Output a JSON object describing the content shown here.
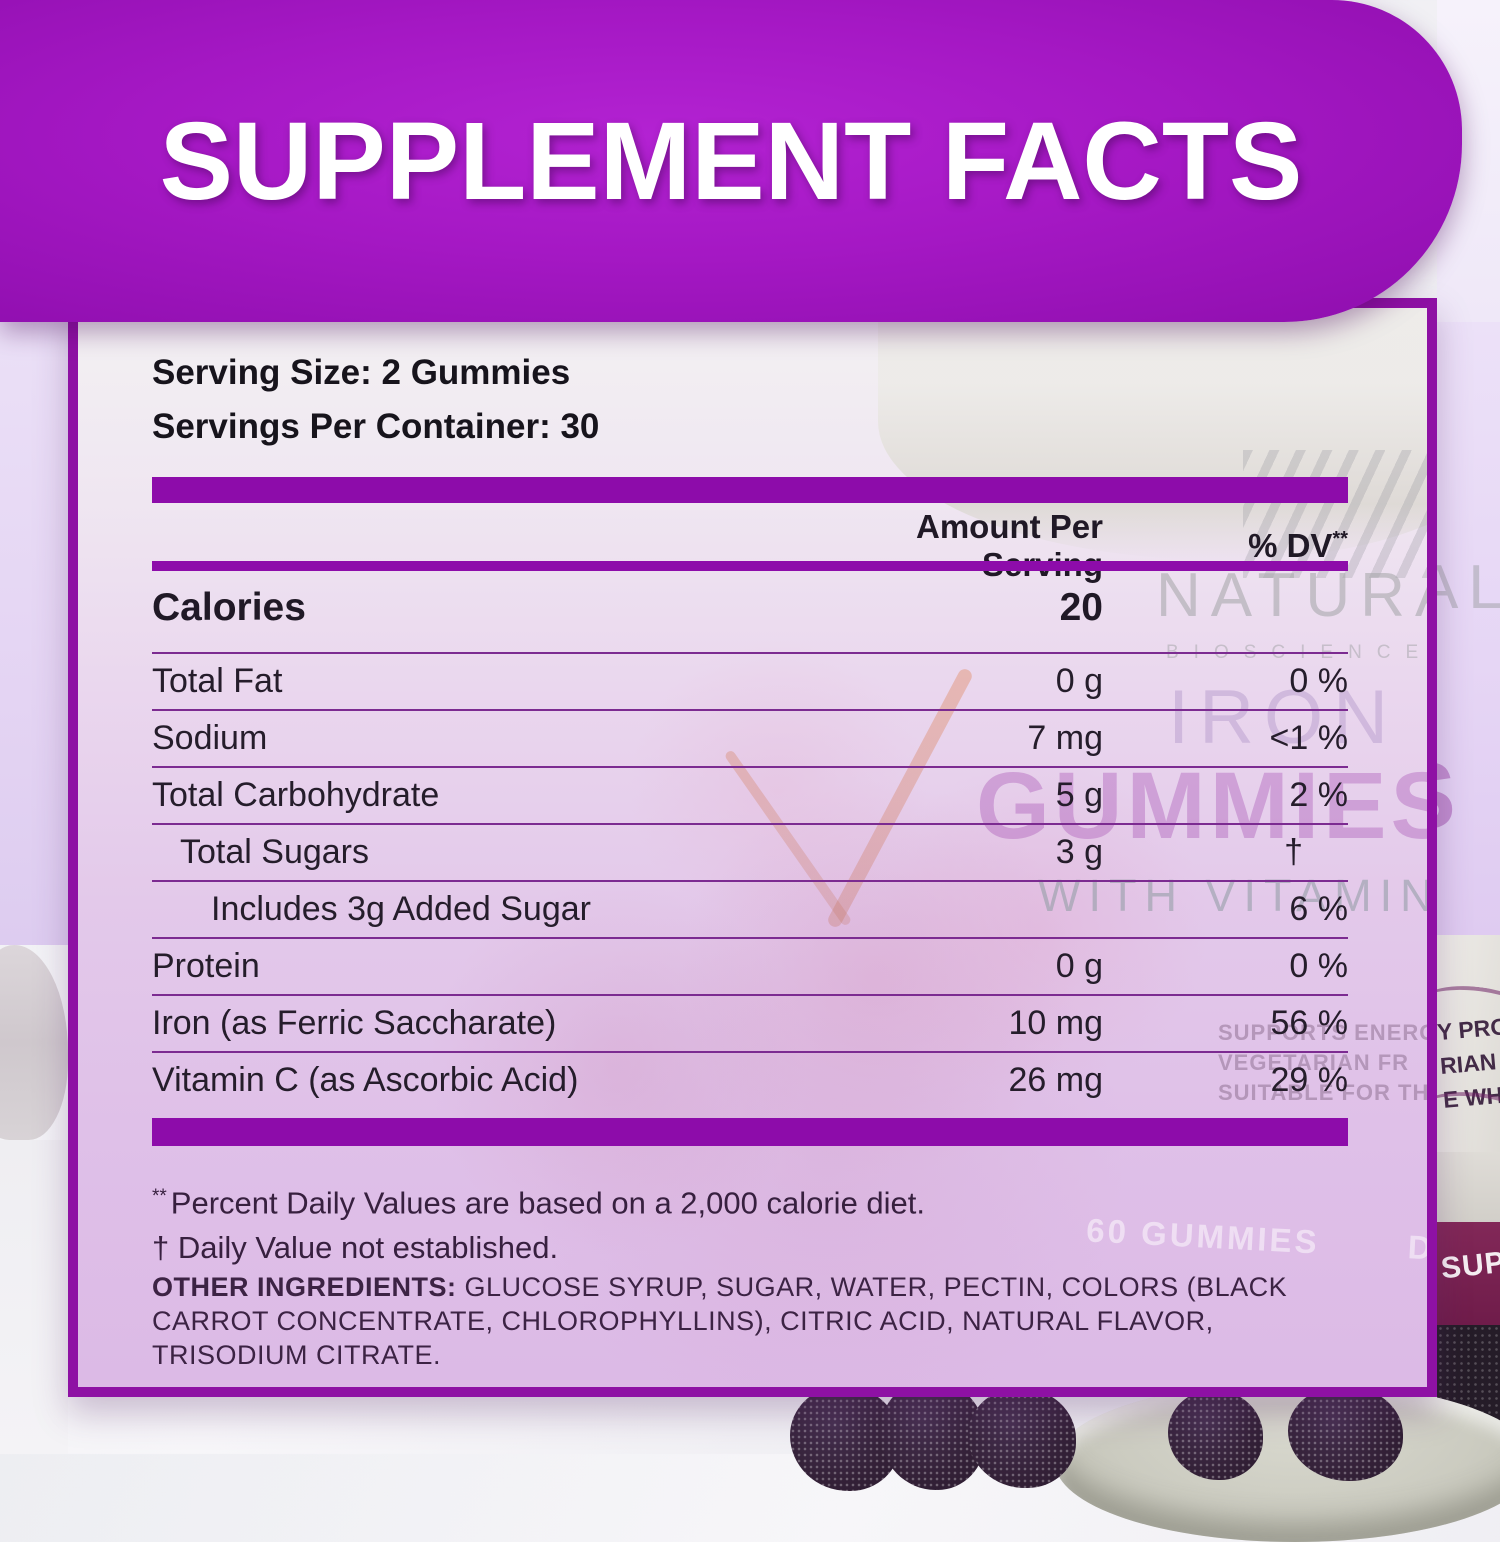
{
  "banner": {
    "title": "SUPPLEMENT FACTS"
  },
  "serving_info": {
    "serving_size": "Serving Size: 2 Gummies",
    "servings_per_container": "Servings Per Container: 30"
  },
  "table": {
    "header": {
      "amount": "Amount Per Serving",
      "dv": "% DV",
      "dv_superscript": "**"
    },
    "calories": {
      "label": "Calories",
      "amount": "20"
    },
    "rows": [
      {
        "label": "Total Fat",
        "amount": "0 g",
        "dv": "0 %",
        "indent": 0
      },
      {
        "label": "Sodium",
        "amount": "7 mg",
        "dv": "<1 %",
        "indent": 0
      },
      {
        "label": "Total Carbohydrate",
        "amount": "5 g",
        "dv": "2 %",
        "indent": 0
      },
      {
        "label": "Total Sugars",
        "amount": "3 g",
        "dv": "†",
        "indent": 1
      },
      {
        "label": "Includes 3g Added Sugar",
        "amount": "",
        "dv": "6 %",
        "indent": 2
      },
      {
        "label": "Protein",
        "amount": "0 g",
        "dv": "0 %",
        "indent": 0
      },
      {
        "label": "Iron (as Ferric Saccharate)",
        "amount": "10 mg",
        "dv": "56 %",
        "indent": 0
      },
      {
        "label": "Vitamin C (as Ascorbic Acid)",
        "amount": "26 mg",
        "dv": "29 %",
        "indent": 0
      }
    ]
  },
  "footnotes": {
    "percent_marker": "**",
    "percent_note": "Percent Daily Values are based on a 2,000 calorie diet.",
    "dagger_note": "† Daily Value not established."
  },
  "other_ingredients": {
    "label": "OTHER INGREDIENTS:",
    "text": "GLUCOSE SYRUP, SUGAR, WATER, PECTIN, COLORS (BLACK CARROT CONCENTRATE, CHLOROPHYLLINS), CITRIC ACID, NATURAL FLAVOR, TRISODIUM CITRATE."
  },
  "background_watermarks": {
    "brand_top": "NATURAL",
    "brand_sub": "BIOSCIENCE",
    "product_name": "IRON",
    "product_type": "GUMMIES",
    "product_sub": "WITH VITAMIN",
    "claims": [
      "SUPPORTS ENERGY PROD",
      "VEGETARIAN FR",
      "SUITABLE FOR THE WHOL"
    ],
    "claim_fragments": [
      "Y PROD",
      "RIAN FR",
      "E WHOL"
    ],
    "count_label": "60",
    "count_unit": "GUMMIES",
    "dietary_label": "DIETARY",
    "bottle_band_fragment": "SUPP"
  },
  "colors": {
    "banner_purple": "#a518c4",
    "banner_purple_dark": "#8e0ead",
    "bar_purple": "#8d0caa",
    "row_line_purple": "#7c2b91",
    "panel_border_purple": "#8e11a4",
    "panel_lavender": "#dcbae6",
    "text_dark": "#201926",
    "footnote_dark": "#37203f"
  }
}
